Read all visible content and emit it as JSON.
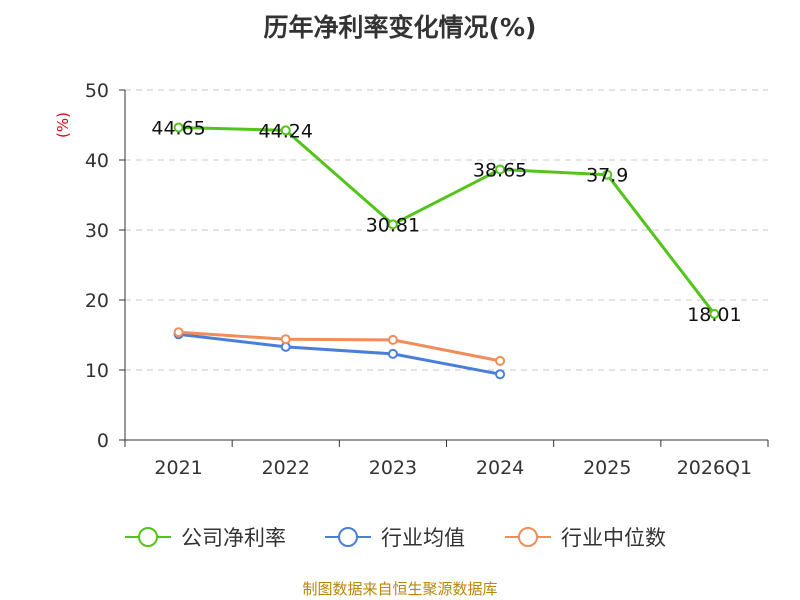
{
  "chart_data": {
    "type": "line",
    "title": "历年净利率变化情况(%)",
    "ylabel": "(%)",
    "xlabel": "",
    "categories": [
      "2021",
      "2022",
      "2023",
      "2024",
      "2025",
      "2026Q1"
    ],
    "ylim": [
      0,
      50
    ],
    "yticks": [
      0,
      10,
      20,
      30,
      40,
      50
    ],
    "grid": true,
    "legend": "bottom",
    "series": [
      {
        "name": "公司净利率",
        "color": "#52c41a",
        "values": [
          44.65,
          44.24,
          30.81,
          38.65,
          37.9,
          18.01
        ],
        "labels": [
          "44.65",
          "44.24",
          "30.81",
          "38.65",
          "37.9",
          "18.01"
        ],
        "show_labels": true
      },
      {
        "name": "行业均值",
        "color": "#4a7fd9",
        "values": [
          15.1,
          13.3,
          12.3,
          9.4,
          null,
          null
        ],
        "show_labels": false
      },
      {
        "name": "行业中位数",
        "color": "#f28c5a",
        "values": [
          15.4,
          14.4,
          14.3,
          11.3,
          null,
          null
        ],
        "show_labels": false
      }
    ]
  },
  "source": "制图数据来自恒生聚源数据库"
}
